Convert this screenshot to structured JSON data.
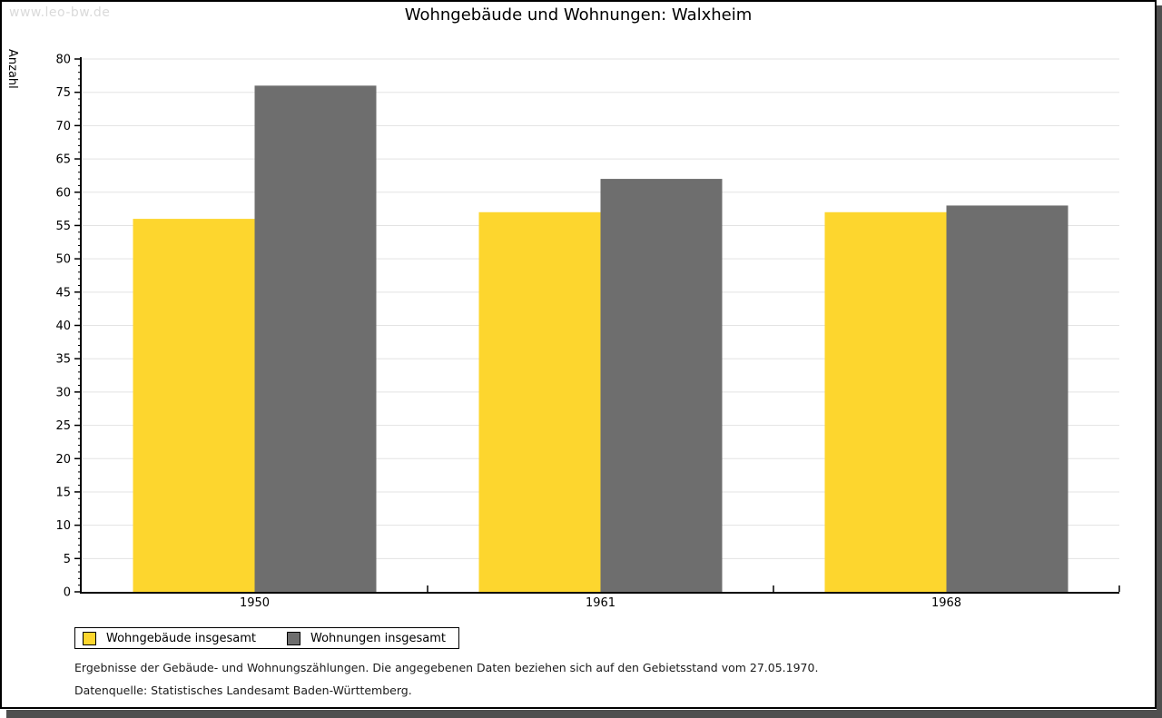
{
  "watermark": "www.leo-bw.de",
  "chart_data": {
    "type": "bar",
    "title": "Wohngebäude und Wohnungen: Walxheim",
    "ylabel": "Anzahl",
    "xlabel": "",
    "categories": [
      "1950",
      "1961",
      "1968"
    ],
    "series": [
      {
        "name": "Wohngebäude insgesamt",
        "color": "#FDD62E",
        "values": [
          56,
          57,
          57
        ]
      },
      {
        "name": "Wohnungen insgesamt",
        "color": "#6E6E6E",
        "values": [
          76,
          62,
          58
        ]
      }
    ],
    "ylim": [
      0,
      80
    ],
    "ytick_step": 5,
    "yminor_step": 1,
    "grid": true,
    "gridline_color": "#E3E3E3",
    "axis_color": "#000000",
    "legend_position": "bottom-left"
  },
  "footer": {
    "line1": "Ergebnisse der Gebäude- und Wohnungszählungen. Die angegebenen Daten beziehen sich auf den Gebietsstand vom 27.05.1970.",
    "line2": "Datenquelle: Statistisches Landesamt Baden-Württemberg."
  }
}
